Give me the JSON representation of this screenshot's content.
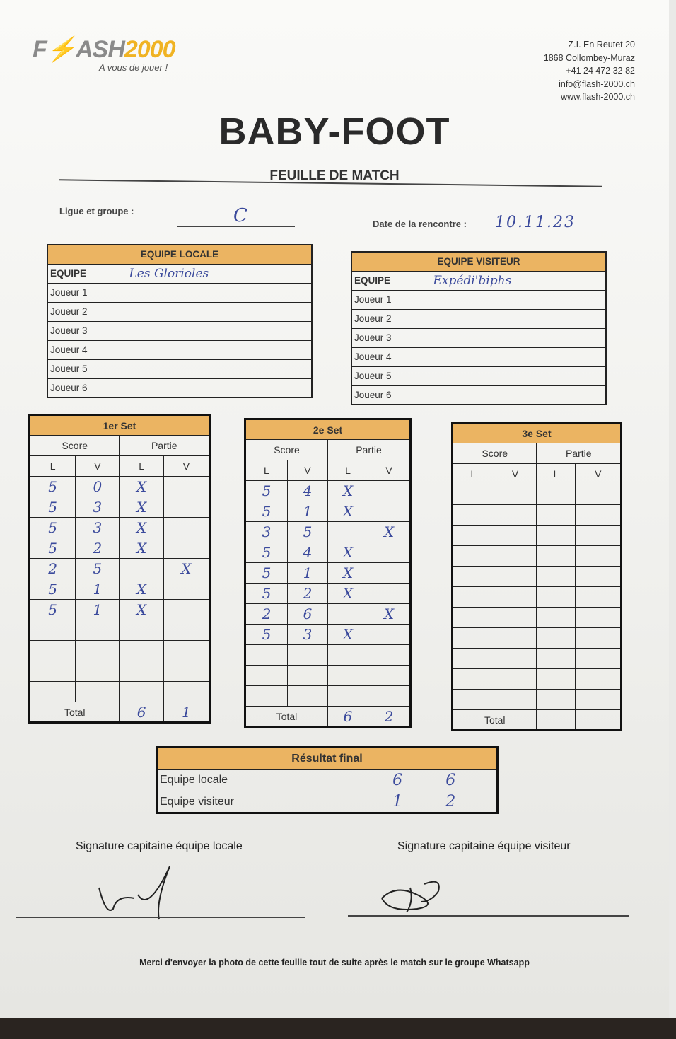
{
  "header": {
    "logo": "FLASH2000",
    "tagline": "A vous de jouer !",
    "address": [
      "Z.I. En Reutet 20",
      "1868 Collombey-Muraz",
      "+41 24 472 32 82",
      "info@flash-2000.ch",
      "www.flash-2000.ch"
    ]
  },
  "title": "BABY-FOOT",
  "subtitle": "FEUILLE DE MATCH",
  "league": {
    "label": "Ligue et groupe :",
    "value": "C"
  },
  "date": {
    "label": "Date de la rencontre :",
    "value": "10.11.23"
  },
  "home": {
    "heading": "EQUIPE LOCALE",
    "team_label": "EQUIPE",
    "team_name": "Les Glorioles",
    "players": [
      "Joueur 1",
      "Joueur 2",
      "Joueur 3",
      "Joueur 4",
      "Joueur 5",
      "Joueur 6"
    ]
  },
  "away": {
    "heading": "EQUIPE VISITEUR",
    "team_label": "EQUIPE",
    "team_name": "Expédi'biphs",
    "players": [
      "Joueur 1",
      "Joueur 2",
      "Joueur 3",
      "Joueur 4",
      "Joueur 5",
      "Joueur 6"
    ]
  },
  "set_columns": {
    "score": "Score",
    "partie": "Partie",
    "l": "L",
    "v": "V",
    "total": "Total"
  },
  "sets": [
    {
      "title": "1er Set",
      "rows": [
        [
          "5",
          "0",
          "X",
          ""
        ],
        [
          "5",
          "3",
          "X",
          ""
        ],
        [
          "5",
          "3",
          "X",
          ""
        ],
        [
          "5",
          "2",
          "X",
          ""
        ],
        [
          "2",
          "5",
          "",
          "X"
        ],
        [
          "5",
          "1",
          "X",
          ""
        ],
        [
          "5",
          "1",
          "X",
          ""
        ],
        [
          "",
          "",
          "",
          ""
        ],
        [
          "",
          "",
          "",
          ""
        ],
        [
          "",
          "",
          "",
          ""
        ],
        [
          "",
          "",
          "",
          ""
        ]
      ],
      "total": [
        "6",
        "1"
      ]
    },
    {
      "title": "2e Set",
      "rows": [
        [
          "5",
          "4",
          "X",
          ""
        ],
        [
          "5",
          "1",
          "X",
          ""
        ],
        [
          "3",
          "5",
          "",
          "X"
        ],
        [
          "5",
          "4",
          "X",
          ""
        ],
        [
          "5",
          "1",
          "X",
          ""
        ],
        [
          "5",
          "2",
          "X",
          ""
        ],
        [
          "2",
          "6",
          "",
          "X"
        ],
        [
          "5",
          "3",
          "X",
          ""
        ],
        [
          "",
          "",
          "",
          ""
        ],
        [
          "",
          "",
          "",
          ""
        ],
        [
          "",
          "",
          "",
          ""
        ]
      ],
      "total": [
        "6",
        "2"
      ]
    },
    {
      "title": "3e Set",
      "rows": [
        [
          "",
          "",
          "",
          ""
        ],
        [
          "",
          "",
          "",
          ""
        ],
        [
          "",
          "",
          "",
          ""
        ],
        [
          "",
          "",
          "",
          ""
        ],
        [
          "",
          "",
          "",
          ""
        ],
        [
          "",
          "",
          "",
          ""
        ],
        [
          "",
          "",
          "",
          ""
        ],
        [
          "",
          "",
          "",
          ""
        ],
        [
          "",
          "",
          "",
          ""
        ],
        [
          "",
          "",
          "",
          ""
        ],
        [
          "",
          "",
          "",
          ""
        ]
      ],
      "total": [
        "",
        ""
      ]
    }
  ],
  "final": {
    "title": "Résultat final",
    "rows": [
      {
        "label": "Equipe locale",
        "values": [
          "6",
          "6",
          ""
        ]
      },
      {
        "label": "Equipe visiteur",
        "values": [
          "1",
          "2",
          ""
        ]
      }
    ]
  },
  "signatures": {
    "home": "Signature capitaine équipe locale",
    "away": "Signature capitaine équipe visiteur"
  },
  "footer": "Merci d'envoyer la photo de cette feuille tout de suite après le match sur le groupe Whatsapp"
}
